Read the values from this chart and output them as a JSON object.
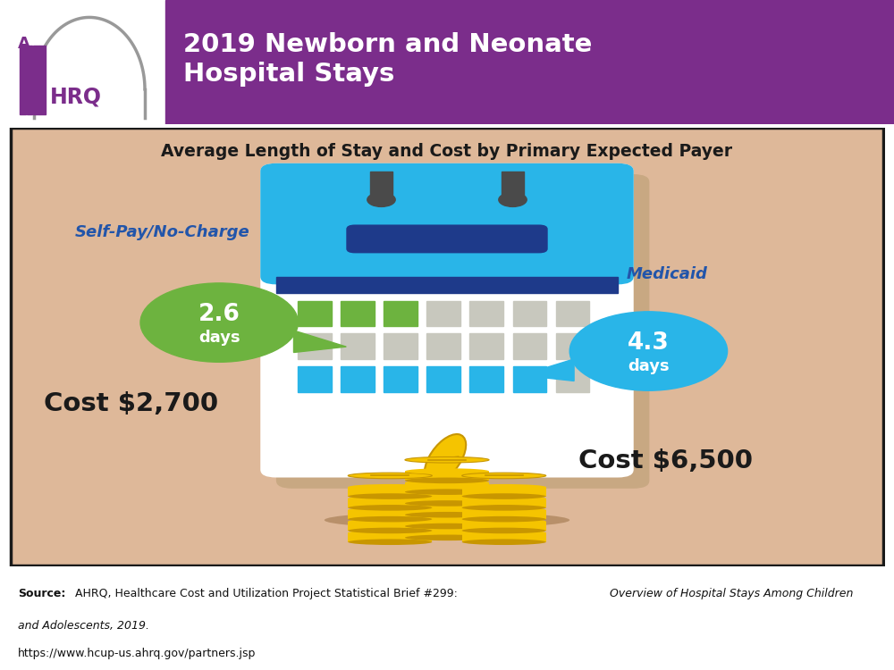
{
  "title": "2019 Newborn and Neonate\nHospital Stays",
  "header_bg_color": "#7B2D8B",
  "header_text_color": "#FFFFFF",
  "content_bg_color": "#DEB899",
  "content_border_color": "#1A1A1A",
  "subtitle": "Average Length of Stay and Cost by Primary Expected Payer",
  "subtitle_color": "#1A1A1A",
  "payer1_label": "Self-Pay/No-Charge",
  "payer1_color": "#2255AA",
  "payer1_days_text1": "2.6",
  "payer1_days_text2": "days",
  "payer1_days_bg": "#6DB33F",
  "payer1_cost": "Cost $2,700",
  "payer2_label": "Medicaid",
  "payer2_color": "#2255AA",
  "payer2_days_text1": "4.3",
  "payer2_days_text2": "days",
  "payer2_days_bg": "#29B5E8",
  "payer2_cost": "Cost $6,500",
  "cost_text_color": "#1A1A1A",
  "calendar_blue": "#29B5E8",
  "calendar_dark_blue": "#1E3A8A",
  "calendar_white": "#FFFFFF",
  "calendar_green": "#6DB33F",
  "calendar_light_gray": "#C8C8BE",
  "calendar_shadow": "#C8A882",
  "coin_gold": "#F5C400",
  "coin_dark_gold": "#C89600",
  "coin_shadow": "#B8906A",
  "source_bold": "Source:",
  "source_normal": " AHRQ, Healthcare Cost and Utilization Project Statistical Brief #299: ",
  "source_italic": "Overview of Hospital Stays Among Children\nand Adolescents, 2019.",
  "source_url": "https://www.hcup-us.ahrq.gov/partners.jsp",
  "ahrq_purple": "#7B2D8B",
  "arch_gray": "#999999",
  "figsize": [
    10,
    7.5
  ],
  "dpi": 100
}
